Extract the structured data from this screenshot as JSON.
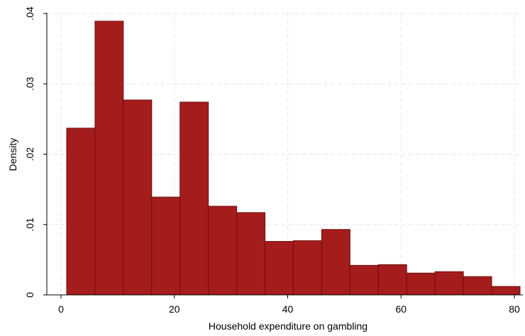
{
  "chart_data": {
    "type": "bar",
    "title": "",
    "xlabel": "Household expenditure on gambling",
    "ylabel": "Density",
    "xlim": [
      0,
      81
    ],
    "ylim": [
      0,
      0.04
    ],
    "grid": true,
    "legend": "none",
    "x_ticks": [
      {
        "value": 0,
        "label": "0"
      },
      {
        "value": 20,
        "label": "20"
      },
      {
        "value": 40,
        "label": "40"
      },
      {
        "value": 60,
        "label": "60"
      },
      {
        "value": 80,
        "label": "80"
      }
    ],
    "y_ticks": [
      {
        "value": 0,
        "label": "0"
      },
      {
        "value": 0.01,
        "label": ".01"
      },
      {
        "value": 0.02,
        "label": ".02"
      },
      {
        "value": 0.03,
        "label": ".03"
      },
      {
        "value": 0.04,
        "label": ".04"
      }
    ],
    "bin_width": 5,
    "bins": [
      {
        "start": 1,
        "end": 6,
        "density": 0.0237
      },
      {
        "start": 6,
        "end": 11,
        "density": 0.0389
      },
      {
        "start": 11,
        "end": 16,
        "density": 0.0277
      },
      {
        "start": 16,
        "end": 21,
        "density": 0.0139
      },
      {
        "start": 21,
        "end": 26,
        "density": 0.0274
      },
      {
        "start": 26,
        "end": 31,
        "density": 0.0126
      },
      {
        "start": 31,
        "end": 36,
        "density": 0.0117
      },
      {
        "start": 36,
        "end": 41,
        "density": 0.0076
      },
      {
        "start": 41,
        "end": 46,
        "density": 0.0077
      },
      {
        "start": 46,
        "end": 51,
        "density": 0.0093
      },
      {
        "start": 51,
        "end": 56,
        "density": 0.0042
      },
      {
        "start": 56,
        "end": 61,
        "density": 0.0043
      },
      {
        "start": 61,
        "end": 66,
        "density": 0.0031
      },
      {
        "start": 66,
        "end": 71,
        "density": 0.0033
      },
      {
        "start": 71,
        "end": 76,
        "density": 0.0026
      },
      {
        "start": 76,
        "end": 81,
        "density": 0.0012
      }
    ],
    "colors": {
      "bar_fill": "#A51C1C",
      "bar_stroke": "#6E0E0E",
      "grid": "#E6E6E6",
      "axis": "#000000"
    }
  }
}
